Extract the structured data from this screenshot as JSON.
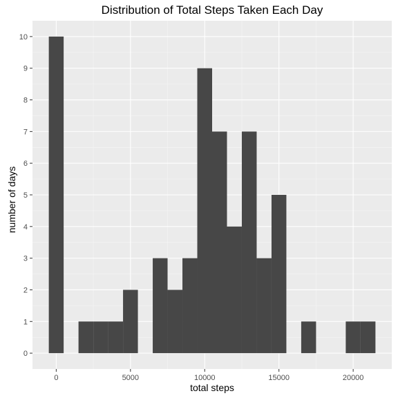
{
  "chart_data": {
    "type": "bar",
    "title": "Distribution of Total Steps Taken Each Day",
    "xlabel": "total steps",
    "ylabel": "number of days",
    "binwidth": 1000,
    "bins": [
      {
        "x": 0,
        "count": 10
      },
      {
        "x": 1000,
        "count": 0
      },
      {
        "x": 2000,
        "count": 1
      },
      {
        "x": 3000,
        "count": 1
      },
      {
        "x": 4000,
        "count": 1
      },
      {
        "x": 5000,
        "count": 2
      },
      {
        "x": 6000,
        "count": 0
      },
      {
        "x": 7000,
        "count": 3
      },
      {
        "x": 8000,
        "count": 2
      },
      {
        "x": 9000,
        "count": 3
      },
      {
        "x": 10000,
        "count": 9
      },
      {
        "x": 11000,
        "count": 7
      },
      {
        "x": 12000,
        "count": 4
      },
      {
        "x": 13000,
        "count": 7
      },
      {
        "x": 14000,
        "count": 3
      },
      {
        "x": 15000,
        "count": 5
      },
      {
        "x": 16000,
        "count": 0
      },
      {
        "x": 17000,
        "count": 1
      },
      {
        "x": 18000,
        "count": 0
      },
      {
        "x": 19000,
        "count": 0
      },
      {
        "x": 20000,
        "count": 1
      },
      {
        "x": 21000,
        "count": 1
      }
    ],
    "xlim": [
      -1600,
      22600
    ],
    "ylim": [
      -0.5,
      10.5
    ],
    "xticks": [
      0,
      5000,
      10000,
      15000,
      20000
    ],
    "xtick_labels": [
      "0",
      "5000",
      "10000",
      "15000",
      "20000"
    ],
    "yticks": [
      0,
      1,
      2,
      3,
      4,
      5,
      6,
      7,
      8,
      9,
      10
    ],
    "ytick_labels": [
      "0",
      "1",
      "2",
      "3",
      "4",
      "5",
      "6",
      "7",
      "8",
      "9",
      "10"
    ],
    "grid": true,
    "legend": "none",
    "colors": {
      "bar": "#474747",
      "panel": "#ebebeb",
      "grid_major": "#ffffff",
      "grid_minor": "#f5f5f5",
      "tick": "#333333"
    }
  }
}
